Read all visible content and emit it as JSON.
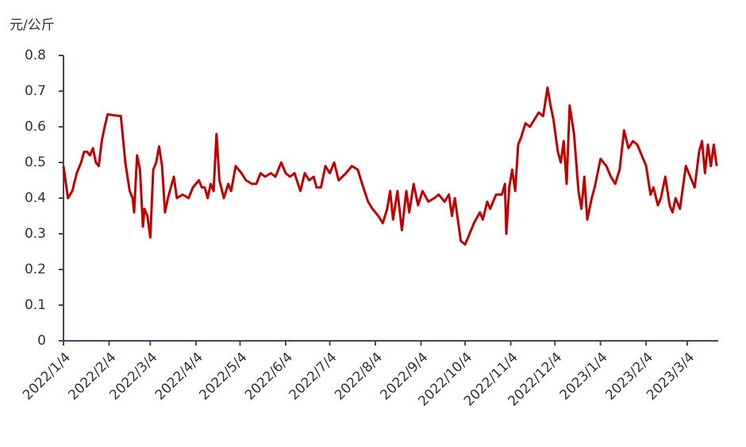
{
  "chart_data": {
    "type": "line",
    "y_label": "元/公斤",
    "color": "#c00000",
    "x": [
      "2022/1/4",
      "2022/1/7",
      "2022/1/10",
      "2022/1/13",
      "2022/1/16",
      "2022/1/18",
      "2022/1/20",
      "2022/1/22",
      "2022/1/24",
      "2022/1/26",
      "2022/1/28",
      "2022/1/30",
      "2022/2/1",
      "2022/2/3",
      "2022/2/8",
      "2022/2/12",
      "2022/2/15",
      "2022/2/18",
      "2022/2/20",
      "2022/2/21",
      "2022/2/23",
      "2022/2/25",
      "2022/2/27",
      "2022/2/28",
      "2022/3/2",
      "2022/3/4",
      "2022/3/6",
      "2022/3/8",
      "2022/3/10",
      "2022/3/12",
      "2022/3/14",
      "2022/3/16",
      "2022/3/18",
      "2022/3/20",
      "2022/3/22",
      "2022/3/26",
      "2022/3/30",
      "2022/4/2",
      "2022/4/6",
      "2022/4/8",
      "2022/4/10",
      "2022/4/12",
      "2022/4/14",
      "2022/4/16",
      "2022/4/18",
      "2022/4/20",
      "2022/4/23",
      "2022/4/26",
      "2022/4/28",
      "2022/5/1",
      "2022/5/5",
      "2022/5/8",
      "2022/5/12",
      "2022/5/15",
      "2022/5/18",
      "2022/5/21",
      "2022/5/25",
      "2022/5/28",
      "2022/6/1",
      "2022/6/4",
      "2022/6/7",
      "2022/6/10",
      "2022/6/14",
      "2022/6/17",
      "2022/6/20",
      "2022/6/23",
      "2022/6/25",
      "2022/6/28",
      "2022/7/1",
      "2022/7/4",
      "2022/7/7",
      "2022/7/10",
      "2022/7/15",
      "2022/7/19",
      "2022/7/23",
      "2022/7/26",
      "2022/7/30",
      "2022/8/2",
      "2022/8/6",
      "2022/8/9",
      "2022/8/12",
      "2022/8/14",
      "2022/8/16",
      "2022/8/19",
      "2022/8/22",
      "2022/8/25",
      "2022/8/27",
      "2022/8/30",
      "2022/9/2",
      "2022/9/5",
      "2022/9/9",
      "2022/9/13",
      "2022/9/16",
      "2022/9/20",
      "2022/9/23",
      "2022/9/25",
      "2022/9/27",
      "2022/9/29",
      "2022/10/1",
      "2022/10/4",
      "2022/10/7",
      "2022/10/10",
      "2022/10/14",
      "2022/10/16",
      "2022/10/19",
      "2022/10/21",
      "2022/10/25",
      "2022/10/29",
      "2022/10/31",
      "2022/11/1",
      "2022/11/3",
      "2022/11/5",
      "2022/11/7",
      "2022/11/9",
      "2022/11/11",
      "2022/11/14",
      "2022/11/17",
      "2022/11/20",
      "2022/11/23",
      "2022/11/26",
      "2022/11/29",
      "2022/12/1",
      "2022/12/3",
      "2022/12/6",
      "2022/12/8",
      "2022/12/10",
      "2022/12/12",
      "2022/12/14",
      "2022/12/17",
      "2022/12/20",
      "2022/12/22",
      "2022/12/24",
      "2022/12/26",
      "2022/12/29",
      "2022/12/31",
      "2023/1/4",
      "2023/1/8",
      "2023/1/11",
      "2023/1/14",
      "2023/1/17",
      "2023/1/20",
      "2023/1/23",
      "2023/1/26",
      "2023/1/29",
      "2023/2/1",
      "2023/2/4",
      "2023/2/7",
      "2023/2/9",
      "2023/2/12",
      "2023/2/14",
      "2023/2/17",
      "2023/2/20",
      "2023/2/22",
      "2023/2/24",
      "2023/2/27",
      "2023/3/3",
      "2023/3/6",
      "2023/3/9",
      "2023/3/12",
      "2023/3/14",
      "2023/3/16",
      "2023/3/18",
      "2023/3/20",
      "2023/3/22",
      "2023/3/24"
    ],
    "values": [
      0.49,
      0.4,
      0.42,
      0.47,
      0.5,
      0.53,
      0.53,
      0.52,
      0.54,
      0.5,
      0.49,
      0.56,
      0.6,
      0.635,
      0.632,
      0.63,
      0.5,
      0.42,
      0.4,
      0.36,
      0.52,
      0.48,
      0.32,
      0.37,
      0.35,
      0.29,
      0.48,
      0.5,
      0.545,
      0.49,
      0.36,
      0.4,
      0.43,
      0.46,
      0.4,
      0.41,
      0.4,
      0.43,
      0.45,
      0.43,
      0.43,
      0.4,
      0.44,
      0.42,
      0.58,
      0.45,
      0.4,
      0.44,
      0.42,
      0.49,
      0.47,
      0.45,
      0.44,
      0.44,
      0.47,
      0.46,
      0.47,
      0.46,
      0.5,
      0.47,
      0.46,
      0.47,
      0.42,
      0.47,
      0.45,
      0.46,
      0.43,
      0.43,
      0.49,
      0.47,
      0.5,
      0.45,
      0.47,
      0.49,
      0.48,
      0.44,
      0.39,
      0.37,
      0.35,
      0.33,
      0.37,
      0.42,
      0.34,
      0.42,
      0.31,
      0.42,
      0.36,
      0.44,
      0.38,
      0.42,
      0.39,
      0.4,
      0.41,
      0.39,
      0.41,
      0.35,
      0.4,
      0.34,
      0.28,
      0.27,
      0.3,
      0.33,
      0.36,
      0.34,
      0.39,
      0.37,
      0.41,
      0.41,
      0.44,
      0.3,
      0.43,
      0.48,
      0.42,
      0.55,
      0.57,
      0.61,
      0.6,
      0.62,
      0.64,
      0.63,
      0.71,
      0.66,
      0.62,
      0.53,
      0.5,
      0.56,
      0.44,
      0.66,
      0.58,
      0.42,
      0.37,
      0.46,
      0.34,
      0.4,
      0.43,
      0.51,
      0.49,
      0.46,
      0.44,
      0.48,
      0.59,
      0.54,
      0.56,
      0.55,
      0.52,
      0.49,
      0.41,
      0.43,
      0.38,
      0.4,
      0.46,
      0.38,
      0.36,
      0.4,
      0.37,
      0.49,
      0.46,
      0.43,
      0.53,
      0.56,
      0.47,
      0.55,
      0.49,
      0.55,
      0.49
    ],
    "xlim": [
      "2022/1/4",
      "2023/3/25"
    ],
    "xticks": [
      "2022/1/4",
      "2022/2/4",
      "2022/3/4",
      "2022/4/4",
      "2022/5/4",
      "2022/6/4",
      "2022/7/4",
      "2022/8/4",
      "2022/9/4",
      "2022/10/4",
      "2022/11/4",
      "2022/12/4",
      "2023/1/4",
      "2023/2/4",
      "2023/3/4"
    ],
    "ylim": [
      0,
      0.8
    ],
    "yticks": [
      0,
      0.1,
      0.2,
      0.3,
      0.4,
      0.5,
      0.6,
      0.7,
      0.8
    ]
  }
}
